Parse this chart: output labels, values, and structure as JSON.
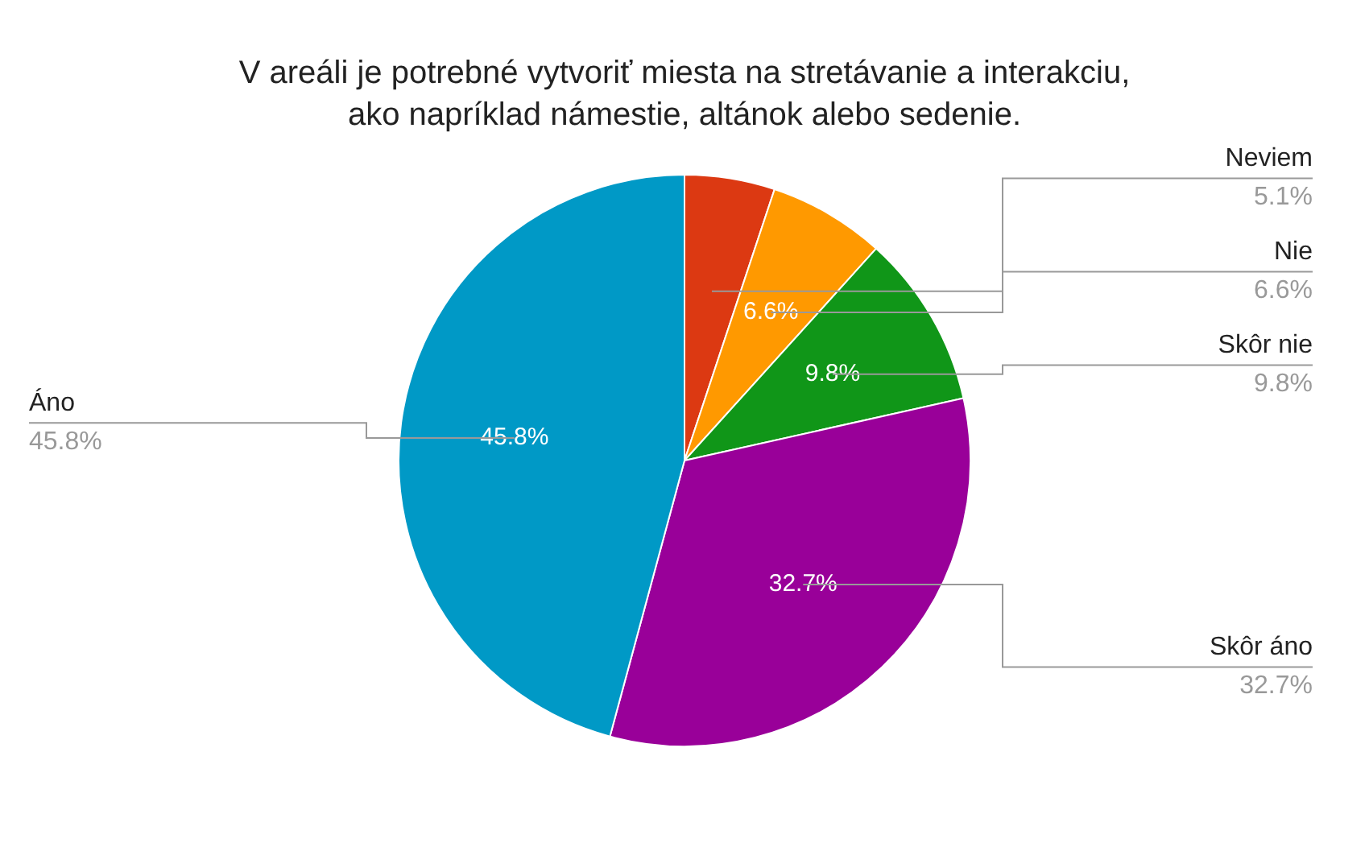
{
  "chart_data": {
    "type": "pie",
    "title": "V areáli je potrebné vytvoriť miesta na stretávanie a interakciu,\nako napríklad námestie, altánok alebo sedenie.",
    "categories": [
      "Neviem",
      "Nie",
      "Skôr nie",
      "Skôr áno",
      "Áno"
    ],
    "values": [
      5.1,
      6.6,
      9.8,
      32.7,
      45.8
    ],
    "colors": [
      "#dc3912",
      "#ff9900",
      "#109618",
      "#990099",
      "#0099c6"
    ],
    "value_labels": [
      "5.1%",
      "6.6%",
      "9.8%",
      "32.7%",
      "45.8%"
    ],
    "legend": false
  }
}
